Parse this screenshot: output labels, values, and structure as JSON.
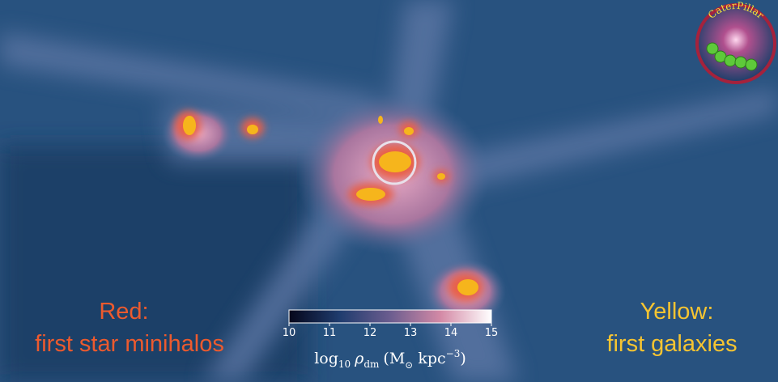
{
  "red_note": {
    "title": "Red:",
    "text": "first star minihalos"
  },
  "yellow_note": {
    "title": "Yellow:",
    "text": "first galaxies"
  },
  "logo": {
    "text": "CaterPillar"
  },
  "colorbar": {
    "lim": [
      10,
      15
    ],
    "ticks": [
      10,
      11,
      12,
      13,
      14,
      15
    ],
    "label": {
      "log": "log",
      "log_sub": "10",
      "symbol": "ρ",
      "symbol_sub": "dm",
      "open": "(M",
      "sun": "⊙",
      "unit": "kpc",
      "unit_sup": "−3",
      "close": ")"
    }
  }
}
